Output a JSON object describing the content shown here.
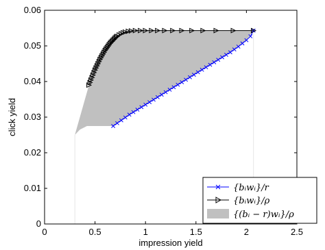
{
  "chart_data": {
    "type": "line",
    "xlabel": "impression yield",
    "ylabel": "click yield",
    "xlim": [
      0,
      2.5
    ],
    "ylim": [
      0,
      0.06
    ],
    "xticks": [
      0,
      0.5,
      1,
      1.5,
      2,
      2.5
    ],
    "yticks": [
      0,
      0.01,
      0.02,
      0.03,
      0.04,
      0.05,
      0.06
    ],
    "xtick_labels": [
      "0",
      "0.5",
      "1",
      "1.5",
      "2",
      "2.5"
    ],
    "ytick_labels": [
      "0",
      "0.01",
      "0.02",
      "0.03",
      "0.04",
      "0.05",
      "0.06"
    ],
    "grid": false,
    "legend_position": "lower-right",
    "series": [
      {
        "name": "{b_i w_i}/r",
        "label_html": "{<tspan>b</tspan><tspan font-size='9' dy='3'>i</tspan><tspan dy='-3'>w</tspan><tspan font-size='9' dy='3'>i</tspan><tspan dy='-3'>}/r</tspan>",
        "legend_text": "{bᵢwᵢ}/r",
        "color": "#0000ff",
        "marker": "x",
        "x": [
          0.68,
          0.72,
          0.76,
          0.8,
          0.84,
          0.88,
          0.92,
          0.96,
          1.0,
          1.04,
          1.08,
          1.12,
          1.16,
          1.2,
          1.24,
          1.28,
          1.32,
          1.36,
          1.4,
          1.44,
          1.48,
          1.52,
          1.56,
          1.6,
          1.64,
          1.68,
          1.72,
          1.76,
          1.8,
          1.84,
          1.88,
          1.92,
          1.96,
          2.0,
          2.04,
          2.07
        ],
        "y": [
          0.0275,
          0.0283,
          0.0291,
          0.0299,
          0.0307,
          0.0314,
          0.0321,
          0.0328,
          0.0335,
          0.0342,
          0.0349,
          0.0356,
          0.0363,
          0.037,
          0.0377,
          0.0384,
          0.0391,
          0.0398,
          0.0405,
          0.0412,
          0.0419,
          0.0426,
          0.0433,
          0.044,
          0.0447,
          0.0454,
          0.0461,
          0.0468,
          0.0475,
          0.0482,
          0.049,
          0.0498,
          0.0507,
          0.0516,
          0.0527,
          0.0543
        ]
      },
      {
        "name": "{b_i w_i}/ρ",
        "legend_text": "{bᵢwᵢ}/ρ",
        "color": "#000000",
        "marker": "triangle-right",
        "x": [
          0.44,
          0.45,
          0.46,
          0.47,
          0.48,
          0.49,
          0.5,
          0.51,
          0.52,
          0.53,
          0.54,
          0.55,
          0.56,
          0.57,
          0.58,
          0.59,
          0.6,
          0.61,
          0.62,
          0.63,
          0.64,
          0.65,
          0.66,
          0.67,
          0.68,
          0.69,
          0.7,
          0.71,
          0.72,
          0.74,
          0.76,
          0.78,
          0.8,
          0.83,
          0.86,
          0.9,
          0.95,
          1.0,
          1.06,
          1.12,
          1.19,
          1.27,
          1.36,
          1.46,
          1.57,
          1.7,
          1.87,
          2.07
        ],
        "y": [
          0.039,
          0.0397,
          0.0404,
          0.0411,
          0.0418,
          0.0425,
          0.0432,
          0.0438,
          0.0444,
          0.045,
          0.0456,
          0.0462,
          0.0467,
          0.0472,
          0.0477,
          0.0482,
          0.0487,
          0.0491,
          0.0495,
          0.0499,
          0.0503,
          0.0507,
          0.051,
          0.0513,
          0.0516,
          0.0519,
          0.0522,
          0.0525,
          0.0527,
          0.0531,
          0.0534,
          0.0537,
          0.0539,
          0.0541,
          0.0542,
          0.0543,
          0.0543,
          0.0543,
          0.0543,
          0.0543,
          0.0543,
          0.0543,
          0.0543,
          0.0543,
          0.0543,
          0.0543,
          0.0543,
          0.0543
        ]
      },
      {
        "name": "{(b_i − r)w_i}/ρ",
        "legend_text": "{(bᵢ − r)wᵢ}/ρ",
        "color": "#c0c0c0",
        "type": "area",
        "upper_x": [
          0.3,
          0.35,
          0.4,
          0.44,
          0.5,
          0.55,
          0.6,
          0.65,
          0.7,
          0.76,
          0.83,
          0.9,
          1.0,
          1.2,
          1.5,
          1.8,
          2.07
        ],
        "upper_y": [
          0.025,
          0.03,
          0.035,
          0.039,
          0.0432,
          0.0462,
          0.0487,
          0.0507,
          0.0522,
          0.0534,
          0.0541,
          0.0543,
          0.0543,
          0.0543,
          0.0543,
          0.0543,
          0.0543
        ],
        "lower_x": [
          0.3,
          0.35,
          0.42,
          0.5,
          0.6,
          0.68,
          1.0,
          1.4,
          1.8,
          2.0,
          2.07
        ],
        "lower_y": [
          0.025,
          0.0265,
          0.0275,
          0.0275,
          0.0275,
          0.0275,
          0.0335,
          0.0405,
          0.0475,
          0.0516,
          0.0543
        ]
      }
    ]
  }
}
